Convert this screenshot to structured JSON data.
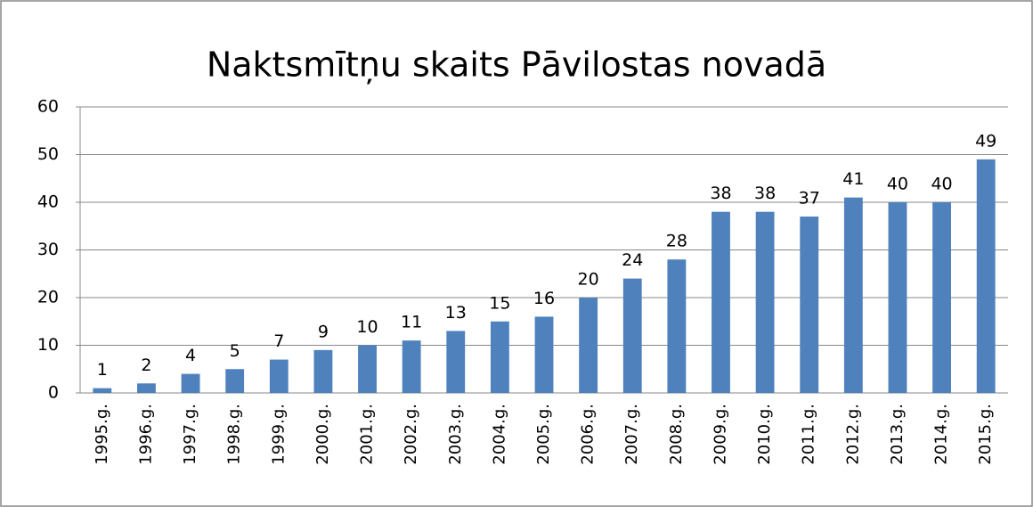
{
  "chart_data": {
    "type": "bar",
    "title": "Naktsmītņu skaits Pāvilostas novadā",
    "categories": [
      "1995.g.",
      "1996.g.",
      "1997.g.",
      "1998.g.",
      "1999.g.",
      "2000.g.",
      "2001.g.",
      "2002.g.",
      "2003.g.",
      "2004.g.",
      "2005.g.",
      "2006.g.",
      "2007.g.",
      "2008.g.",
      "2009.g.",
      "2010.g.",
      "2011.g.",
      "2012.g.",
      "2013.g.",
      "2014.g.",
      "2015.g."
    ],
    "values": [
      1,
      2,
      4,
      5,
      7,
      9,
      10,
      11,
      13,
      15,
      16,
      20,
      24,
      28,
      38,
      38,
      37,
      41,
      40,
      40,
      49
    ],
    "color": "#4f81bd",
    "ylim": [
      0,
      60
    ],
    "yticks": [
      0,
      10,
      20,
      30,
      40,
      50,
      60
    ],
    "grid": true
  }
}
